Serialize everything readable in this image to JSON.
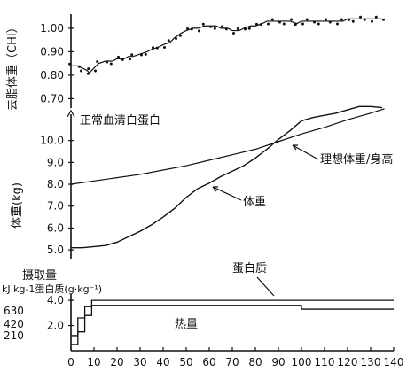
{
  "chart_data": [
    {
      "type": "scatter",
      "ylabel": "去脂体重（CHI）",
      "ylim": [
        0.66,
        1.06
      ],
      "yticks": [
        1.0,
        0.9,
        0.8,
        0.7
      ],
      "ytick_labels": [
        "1.00",
        "0.90",
        "0.80",
        "0.70"
      ],
      "x": [
        0,
        3,
        5,
        7,
        8,
        10,
        12,
        15,
        18,
        20,
        23,
        25,
        27,
        30,
        33,
        35,
        38,
        40,
        43,
        45,
        48,
        50,
        53,
        55,
        58,
        60,
        63,
        65,
        68,
        70,
        73,
        75,
        78,
        80,
        83,
        85,
        88,
        90,
        93,
        95,
        98,
        100,
        103,
        105,
        108,
        110,
        113,
        115,
        118,
        120,
        123,
        125,
        128,
        130,
        133,
        135
      ],
      "values": [
        0.84,
        0.84,
        0.83,
        0.82,
        0.81,
        0.83,
        0.85,
        0.86,
        0.86,
        0.87,
        0.87,
        0.88,
        0.88,
        0.89,
        0.9,
        0.91,
        0.92,
        0.93,
        0.94,
        0.96,
        0.98,
        0.99,
        1.0,
        1.0,
        1.01,
        1.01,
        1.01,
        1.0,
        1.0,
        0.99,
        0.99,
        1.0,
        1.01,
        1.01,
        1.02,
        1.03,
        1.03,
        1.03,
        1.03,
        1.03,
        1.02,
        1.03,
        1.03,
        1.03,
        1.03,
        1.03,
        1.03,
        1.03,
        1.03,
        1.04,
        1.04,
        1.04,
        1.04,
        1.04,
        1.04,
        1.04
      ]
    },
    {
      "type": "line",
      "ylabel": "体重(kg)",
      "ylim": [
        4.6,
        11.2
      ],
      "yticks": [
        10.0,
        9.0,
        8.0,
        7.0,
        6.0,
        5.0
      ],
      "ytick_labels": [
        "10.0",
        "9.0",
        "8.0",
        "7.0",
        "6.0",
        "5.0"
      ],
      "series": [
        {
          "name": "体重",
          "x": [
            0,
            5,
            10,
            15,
            20,
            25,
            30,
            35,
            40,
            45,
            50,
            55,
            60,
            65,
            70,
            75,
            80,
            85,
            90,
            95,
            100,
            105,
            110,
            115,
            120,
            125,
            130,
            135
          ],
          "values": [
            5.1,
            5.1,
            5.15,
            5.2,
            5.35,
            5.6,
            5.85,
            6.15,
            6.5,
            6.9,
            7.4,
            7.8,
            8.05,
            8.35,
            8.6,
            8.85,
            9.2,
            9.6,
            10.05,
            10.45,
            10.9,
            11.05,
            11.15,
            11.25,
            11.4,
            11.55,
            11.55,
            11.5
          ]
        },
        {
          "name": "理想体重/身高",
          "x": [
            0,
            10,
            20,
            30,
            40,
            50,
            60,
            70,
            80,
            90,
            100,
            110,
            120,
            130,
            136
          ],
          "values": [
            8.0,
            8.15,
            8.3,
            8.45,
            8.65,
            8.85,
            9.1,
            9.35,
            9.6,
            9.95,
            10.3,
            10.6,
            10.95,
            11.25,
            11.45
          ]
        }
      ]
    },
    {
      "type": "line",
      "ylim": [
        0,
        4.5
      ],
      "yticks": [
        4.0,
        2.0
      ],
      "ytick_labels": [
        "4.0",
        "2.0"
      ],
      "left_tick_labels": [
        "630",
        "420",
        "210"
      ],
      "xticks": [
        0,
        10,
        20,
        30,
        40,
        50,
        60,
        70,
        80,
        90,
        100,
        110,
        120,
        130,
        140
      ],
      "xtick_labels": [
        "0",
        "10",
        "20",
        "30",
        "40",
        "50",
        "60",
        "70",
        "80",
        "90",
        "100",
        "110",
        "120",
        "130",
        "140"
      ],
      "series": [
        {
          "name": "蛋白质",
          "x": [
            0,
            3,
            6,
            9,
            10,
            20,
            40,
            60,
            80,
            100,
            120,
            140
          ],
          "values": [
            1.2,
            2.6,
            3.5,
            4.0,
            4.0,
            4.0,
            4.0,
            4.0,
            4.0,
            4.0,
            4.0,
            4.0
          ]
        },
        {
          "name": "热量",
          "x": [
            0,
            3,
            6,
            9,
            10,
            20,
            40,
            60,
            80,
            99,
            100,
            120,
            140
          ],
          "values": [
            0.5,
            1.5,
            2.8,
            3.6,
            3.6,
            3.6,
            3.6,
            3.6,
            3.6,
            3.6,
            3.3,
            3.3,
            3.3
          ]
        }
      ]
    }
  ],
  "labels": {
    "normal_serum_albumin": "正常血清白蛋白",
    "weight": "体重",
    "ideal_weight_height": "理想体重/身高",
    "intake": "摄取量",
    "units": "kJ.kg-1蛋白质(g·kg⁻¹)",
    "protein": "蛋白质",
    "calories": "热量"
  }
}
